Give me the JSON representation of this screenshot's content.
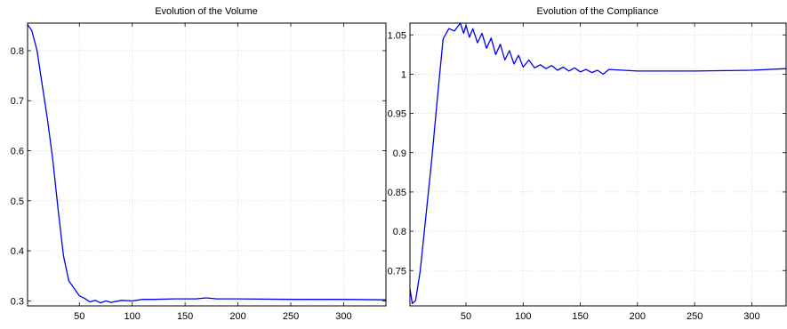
{
  "colors": {
    "series": "#0000ee",
    "grid": "#d4d4d4",
    "axes": "#000000"
  },
  "chart_data": [
    {
      "type": "line",
      "title": "Evolution of the Volume",
      "xlabel": "",
      "ylabel": "",
      "xlim": [
        1,
        340
      ],
      "ylim": [
        0.29,
        0.855
      ],
      "grid": true,
      "xticks": [
        50,
        100,
        150,
        200,
        250,
        300
      ],
      "yticks": [
        0.3,
        0.4,
        0.5,
        0.6,
        0.7,
        0.8
      ],
      "xtick_labels": [
        "50",
        "100",
        "150",
        "200",
        "250",
        "300"
      ],
      "ytick_labels": [
        "0.3",
        "0.4",
        "0.5",
        "0.6",
        "0.7",
        "0.8"
      ],
      "series": [
        {
          "x": [
            1,
            5,
            10,
            15,
            20,
            25,
            30,
            35,
            40,
            45,
            50,
            55,
            60,
            65,
            70,
            75,
            80,
            90,
            100,
            110,
            120,
            140,
            160,
            170,
            180,
            200,
            250,
            300,
            340
          ],
          "y": [
            0.852,
            0.84,
            0.8,
            0.73,
            0.66,
            0.58,
            0.48,
            0.39,
            0.34,
            0.325,
            0.31,
            0.305,
            0.298,
            0.301,
            0.296,
            0.3,
            0.297,
            0.301,
            0.3,
            0.303,
            0.303,
            0.304,
            0.304,
            0.306,
            0.304,
            0.304,
            0.303,
            0.303,
            0.302
          ]
        }
      ]
    },
    {
      "type": "line",
      "title": "Evolution of the Compliance",
      "xlabel": "",
      "ylabel": "",
      "xlim": [
        1,
        330
      ],
      "ylim": [
        0.705,
        1.065
      ],
      "grid": true,
      "xticks": [
        50,
        100,
        150,
        200,
        250,
        300
      ],
      "yticks": [
        0.75,
        0.8,
        0.85,
        0.9,
        0.95,
        1.0,
        1.05
      ],
      "xtick_labels": [
        "50",
        "100",
        "150",
        "200",
        "250",
        "300"
      ],
      "ytick_labels": [
        "0.75",
        "0.8",
        "0.85",
        "0.9",
        "0.95",
        "1",
        "1.05"
      ],
      "series": [
        {
          "x": [
            1,
            3,
            6,
            10,
            15,
            20,
            25,
            30,
            35,
            40,
            45,
            48,
            50,
            53,
            56,
            60,
            64,
            68,
            72,
            76,
            80,
            84,
            88,
            92,
            96,
            100,
            105,
            110,
            115,
            120,
            125,
            130,
            135,
            140,
            145,
            150,
            155,
            160,
            165,
            170,
            175,
            200,
            250,
            300,
            330
          ],
          "y": [
            0.727,
            0.708,
            0.712,
            0.75,
            0.82,
            0.89,
            0.97,
            1.045,
            1.058,
            1.055,
            1.065,
            1.052,
            1.062,
            1.047,
            1.058,
            1.04,
            1.052,
            1.033,
            1.046,
            1.025,
            1.038,
            1.018,
            1.03,
            1.013,
            1.024,
            1.009,
            1.018,
            1.008,
            1.012,
            1.007,
            1.011,
            1.005,
            1.009,
            1.004,
            1.008,
            1.003,
            1.006,
            1.002,
            1.005,
            1.0,
            1.006,
            1.004,
            1.004,
            1.005,
            1.007
          ]
        }
      ]
    }
  ]
}
